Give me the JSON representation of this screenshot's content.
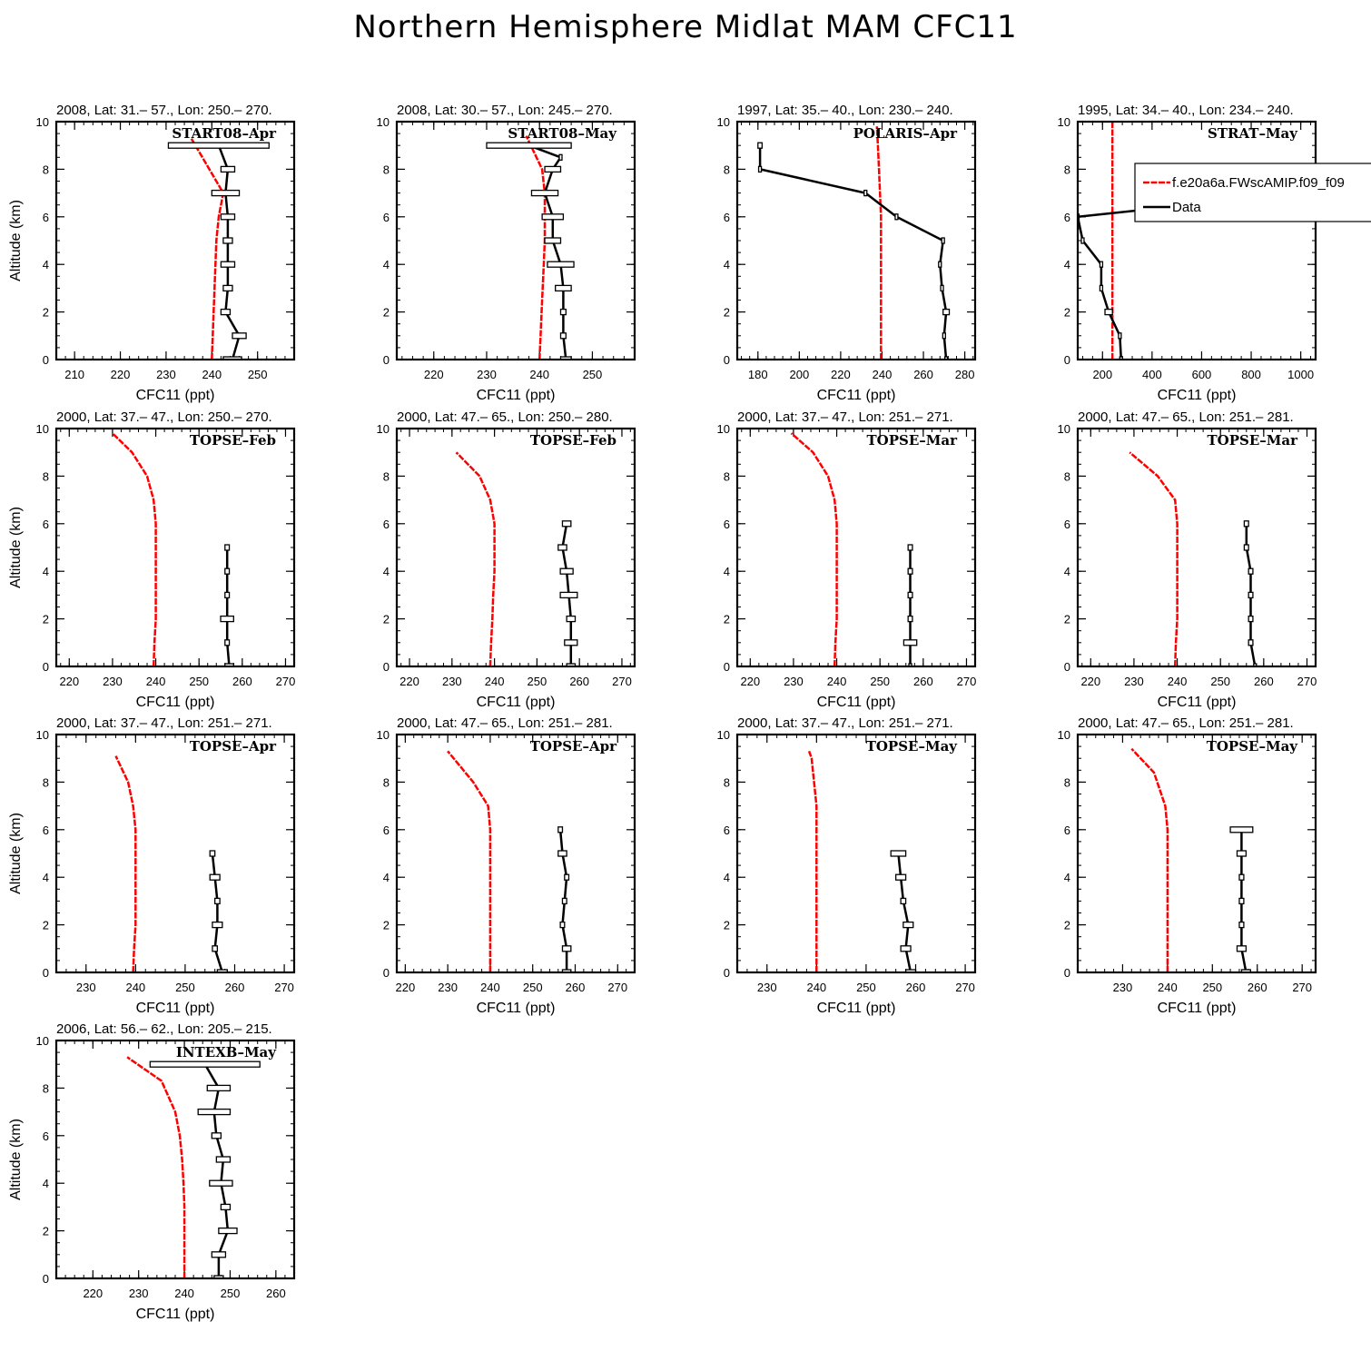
{
  "title": "Northern Hemisphere Midlat MAM CFC11",
  "colors": {
    "model": "#ff0000",
    "data": "#000000"
  },
  "legend": {
    "panel": 3,
    "model_label": "f.e20a6a.FWscAMIP.f09_f09",
    "data_label": "Data"
  },
  "chart_data": [
    {
      "type": "line",
      "title": "2008, Lat:  31.–  57., Lon: 250.–  270.",
      "campaign": "START08–Apr",
      "xlabel": "CFC11 (ppt)",
      "ylabel": "Altitude (km)",
      "xlim": [
        206,
        258
      ],
      "ylim": [
        0,
        10
      ],
      "xticks": [
        210,
        220,
        230,
        240,
        250
      ],
      "yticks": [
        0,
        2,
        4,
        6,
        8,
        10
      ],
      "model": {
        "x": [
          240,
          240.2,
          240.4,
          240.6,
          240.8,
          241,
          241.5,
          242.5,
          235.5
        ],
        "y": [
          0,
          1,
          2,
          3,
          4,
          5,
          6,
          7,
          9.3
        ]
      },
      "observations": {
        "x": [
          244.5,
          246,
          243,
          243.5,
          243.5,
          243.5,
          243.5,
          243,
          243.5,
          241.5
        ],
        "y": [
          0,
          1,
          2,
          3,
          4,
          5,
          6,
          7,
          8,
          9
        ],
        "err": [
          2,
          1.5,
          1,
          1,
          1.5,
          1,
          1.5,
          3,
          1.5,
          11
        ]
      }
    },
    {
      "type": "line",
      "title": "2008, Lat:  30.–  57., Lon: 245.–  270.",
      "campaign": "START08–May",
      "xlabel": "CFC11 (ppt)",
      "ylabel": "",
      "xlim": [
        213,
        258
      ],
      "ylim": [
        0,
        10
      ],
      "xticks": [
        220,
        230,
        240,
        250
      ],
      "yticks": [
        0,
        2,
        4,
        6,
        8,
        10
      ],
      "model": {
        "x": [
          240,
          240.2,
          240.4,
          240.6,
          240.8,
          241,
          241,
          241,
          240.5,
          237.5
        ],
        "y": [
          0,
          1,
          2,
          3,
          4,
          5,
          6,
          7,
          8,
          9.4
        ]
      },
      "observations": {
        "x": [
          245,
          244.5,
          244.5,
          244.5,
          244,
          242.5,
          242.5,
          241,
          242.5,
          244,
          238
        ],
        "y": [
          0,
          1,
          2,
          3,
          4,
          5,
          6,
          7,
          8,
          8.5,
          9
        ],
        "err": [
          1,
          0.5,
          0.5,
          1.5,
          2.5,
          1.5,
          2,
          2.5,
          1.5,
          0,
          8
        ]
      }
    },
    {
      "type": "line",
      "title": "1997, Lat:  35.–  40., Lon: 230.–  240.",
      "campaign": "POLARIS–Apr",
      "xlabel": "CFC11 (ppt)",
      "ylabel": "",
      "xlim": [
        170,
        285
      ],
      "ylim": [
        0,
        10
      ],
      "xticks": [
        180,
        200,
        220,
        240,
        260,
        280
      ],
      "yticks": [
        0,
        2,
        4,
        6,
        8,
        10
      ],
      "model": {
        "x": [
          239.5,
          239.5,
          239.5,
          239.5,
          239.5,
          239.5,
          239.5,
          239,
          238.5,
          238,
          237.5
        ],
        "y": [
          0,
          1,
          2,
          3,
          4,
          5,
          6,
          7,
          8,
          9,
          9.8
        ]
      },
      "observations": {
        "x": [
          271,
          270,
          271,
          269,
          268,
          269.5,
          247,
          232,
          181,
          181
        ],
        "y": [
          0,
          1,
          2,
          3,
          4,
          5,
          6,
          7,
          8,
          9
        ],
        "err": [
          0,
          0,
          1.5,
          0,
          0,
          0,
          0,
          0,
          0,
          1
        ]
      }
    },
    {
      "type": "line",
      "title": "1995, Lat:  34.–  40., Lon: 234.–  240.",
      "campaign": "STRAT–May",
      "xlabel": "CFC11 (ppt)",
      "ylabel": "",
      "xlim": [
        100,
        1060
      ],
      "ylim": [
        0,
        10
      ],
      "xticks": [
        200,
        400,
        600,
        800,
        1000
      ],
      "yticks": [
        0,
        2,
        4,
        6,
        8,
        10
      ],
      "model": {
        "x": [
          240,
          240,
          240,
          240,
          240,
          240,
          240,
          240,
          240,
          240,
          240
        ],
        "y": [
          0,
          1,
          2,
          3,
          4,
          5,
          6,
          7,
          8,
          9,
          10
        ]
      },
      "observations": {
        "x": [
          275,
          270,
          225,
          195,
          195,
          120,
          100,
          1000
        ],
        "y": [
          0,
          1,
          2,
          3,
          4,
          5,
          6,
          7
        ],
        "err": [
          0,
          0,
          15,
          0,
          0,
          0,
          0,
          0
        ]
      }
    },
    {
      "type": "line",
      "title": "2000, Lat:  37.–  47., Lon: 250.–  270.",
      "campaign": "TOPSE–Feb",
      "xlabel": "CFC11 (ppt)",
      "ylabel": "Altitude (km)",
      "xlim": [
        217,
        272
      ],
      "ylim": [
        0,
        10
      ],
      "xticks": [
        220,
        230,
        240,
        250,
        260,
        270
      ],
      "yticks": [
        0,
        2,
        4,
        6,
        8,
        10
      ],
      "model": {
        "x": [
          239.5,
          239.7,
          240,
          240,
          240,
          240,
          240,
          239.5,
          238,
          234.5,
          230
        ],
        "y": [
          0,
          1,
          2,
          3,
          4,
          5,
          6,
          7,
          8,
          9,
          9.8
        ]
      },
      "observations": {
        "x": [
          257,
          256.5,
          256.5,
          256.5,
          256.5,
          256.5
        ],
        "y": [
          0,
          1,
          2,
          3,
          4,
          5
        ],
        "err": [
          1,
          0.5,
          1.5,
          0.5,
          0.5,
          0.5
        ]
      }
    },
    {
      "type": "line",
      "title": "2000, Lat:  47.–  65., Lon: 250.–  280.",
      "campaign": "TOPSE–Feb",
      "xlabel": "CFC11 (ppt)",
      "ylabel": "",
      "xlim": [
        217,
        273
      ],
      "ylim": [
        0,
        10
      ],
      "xticks": [
        220,
        230,
        240,
        250,
        260,
        270
      ],
      "yticks": [
        0,
        2,
        4,
        6,
        8,
        10
      ],
      "model": {
        "x": [
          239,
          239.2,
          239.5,
          239.7,
          240,
          240,
          240,
          239,
          236.5,
          231
        ],
        "y": [
          0,
          1,
          2,
          3,
          4,
          5,
          6,
          7,
          8,
          9
        ]
      },
      "observations": {
        "x": [
          258,
          258,
          258,
          257.5,
          257,
          256,
          257
        ],
        "y": [
          0,
          1,
          2,
          3,
          4,
          5,
          6
        ],
        "err": [
          1,
          1.5,
          1,
          2,
          1.5,
          1,
          1
        ]
      }
    },
    {
      "type": "line",
      "title": "2000, Lat:  37.–  47., Lon: 251.–  271.",
      "campaign": "TOPSE–Mar",
      "xlabel": "CFC11 (ppt)",
      "ylabel": "",
      "xlim": [
        217,
        272
      ],
      "ylim": [
        0,
        10
      ],
      "xticks": [
        220,
        230,
        240,
        250,
        260,
        270
      ],
      "yticks": [
        0,
        2,
        4,
        6,
        8,
        10
      ],
      "model": {
        "x": [
          239.5,
          239.7,
          240,
          240,
          240,
          240,
          240,
          239.5,
          238,
          234.5,
          229.5
        ],
        "y": [
          0,
          1,
          2,
          3,
          4,
          5,
          6,
          7,
          8,
          9,
          9.8
        ]
      },
      "observations": {
        "x": [
          257,
          257,
          257,
          257,
          257,
          257
        ],
        "y": [
          0,
          1,
          2,
          3,
          4,
          5
        ],
        "err": [
          0,
          1.5,
          0.5,
          0.5,
          0.5,
          0.5
        ]
      }
    },
    {
      "type": "line",
      "title": "2000, Lat:  47.–  65., Lon: 251.–  281.",
      "campaign": "TOPSE–Mar",
      "xlabel": "CFC11 (ppt)",
      "ylabel": "",
      "xlim": [
        217,
        272
      ],
      "ylim": [
        0,
        10
      ],
      "xticks": [
        220,
        230,
        240,
        250,
        260,
        270
      ],
      "yticks": [
        0,
        2,
        4,
        6,
        8,
        10
      ],
      "model": {
        "x": [
          239.5,
          239.7,
          240,
          240,
          240,
          240,
          240,
          239.5,
          235.5,
          229
        ],
        "y": [
          0,
          1,
          2,
          3,
          4,
          5,
          6,
          7,
          8,
          9
        ]
      },
      "observations": {
        "x": [
          258,
          257,
          257,
          257,
          257,
          256,
          256
        ],
        "y": [
          0,
          1,
          2,
          3,
          4,
          5,
          6
        ],
        "err": [
          0,
          0.5,
          0.5,
          0.5,
          0.5,
          0.5,
          0.5
        ]
      }
    },
    {
      "type": "line",
      "title": "2000, Lat:  37.–  47., Lon: 251.–  271.",
      "campaign": "TOPSE–Apr",
      "xlabel": "CFC11 (ppt)",
      "ylabel": "Altitude (km)",
      "xlim": [
        224,
        272
      ],
      "ylim": [
        0,
        10
      ],
      "xticks": [
        230,
        240,
        250,
        260,
        270
      ],
      "yticks": [
        0,
        2,
        4,
        6,
        8,
        10
      ],
      "model": {
        "x": [
          239.5,
          239.7,
          240,
          240,
          240,
          240,
          240,
          239.5,
          238.5,
          236
        ],
        "y": [
          0,
          1,
          2,
          3,
          4,
          5,
          6,
          7,
          8,
          9.1
        ]
      },
      "observations": {
        "x": [
          257.5,
          256,
          256.5,
          256.5,
          256,
          255.5
        ],
        "y": [
          0,
          1,
          2,
          3,
          4,
          5
        ],
        "err": [
          1,
          0.5,
          1,
          0.5,
          1,
          0.5
        ]
      }
    },
    {
      "type": "line",
      "title": "2000, Lat:  47.–  65., Lon: 251.–  281.",
      "campaign": "TOPSE–Apr",
      "xlabel": "CFC11 (ppt)",
      "ylabel": "",
      "xlim": [
        218,
        274
      ],
      "ylim": [
        0,
        10
      ],
      "xticks": [
        220,
        230,
        240,
        250,
        260,
        270
      ],
      "yticks": [
        0,
        2,
        4,
        6,
        8,
        10
      ],
      "model": {
        "x": [
          240,
          240,
          240,
          240,
          240,
          240,
          240,
          239.5,
          236,
          230
        ],
        "y": [
          0,
          1,
          2,
          3,
          4,
          5,
          6,
          7,
          8,
          9.3
        ]
      },
      "observations": {
        "x": [
          258,
          258,
          257,
          257.5,
          258,
          257,
          256.5
        ],
        "y": [
          0,
          1,
          2,
          3,
          4,
          5,
          6
        ],
        "err": [
          1,
          1,
          0.5,
          0.5,
          0.5,
          1,
          0.5
        ]
      }
    },
    {
      "type": "line",
      "title": "2000, Lat:  37.–  47., Lon: 251.–  271.",
      "campaign": "TOPSE–May",
      "xlabel": "CFC11 (ppt)",
      "ylabel": "",
      "xlim": [
        224,
        272
      ],
      "ylim": [
        0,
        10
      ],
      "xticks": [
        230,
        240,
        250,
        260,
        270
      ],
      "yticks": [
        0,
        2,
        4,
        6,
        8,
        10
      ],
      "model": {
        "x": [
          240,
          240,
          240,
          240,
          240,
          240,
          240,
          240,
          239.5,
          239,
          238.5
        ],
        "y": [
          0,
          1,
          2,
          3,
          4,
          5,
          6,
          7,
          8,
          9,
          9.3
        ]
      },
      "observations": {
        "x": [
          259,
          258,
          258.5,
          257.5,
          257,
          256.5
        ],
        "y": [
          0,
          1,
          2,
          3,
          4,
          5
        ],
        "err": [
          1,
          1,
          1,
          0.5,
          1,
          1.5
        ]
      }
    },
    {
      "type": "line",
      "title": "2000, Lat:  47.–  65., Lon: 251.–  281.",
      "campaign": "TOPSE–May",
      "xlabel": "CFC11 (ppt)",
      "ylabel": "",
      "xlim": [
        220,
        273
      ],
      "ylim": [
        0,
        10
      ],
      "xticks": [
        230,
        240,
        250,
        260,
        270
      ],
      "yticks": [
        0,
        2,
        4,
        6,
        8,
        10
      ],
      "model": {
        "x": [
          240,
          240,
          240,
          240,
          240,
          240,
          240,
          239.5,
          237,
          232
        ],
        "y": [
          0,
          1,
          2,
          3,
          4,
          5,
          6,
          7,
          8.4,
          9.4
        ]
      },
      "observations": {
        "x": [
          257.5,
          256.5,
          256.5,
          256.5,
          256.5,
          256.5,
          256.5
        ],
        "y": [
          0,
          1,
          2,
          3,
          4,
          5,
          6
        ],
        "err": [
          1,
          1,
          0.5,
          0.5,
          0.5,
          1,
          2.5
        ]
      }
    },
    {
      "type": "line",
      "title": "2006, Lat:  56.–  62., Lon: 205.–  215.",
      "campaign": "INTEXB–May",
      "xlabel": "CFC11 (ppt)",
      "ylabel": "Altitude (km)",
      "xlim": [
        212,
        264
      ],
      "ylim": [
        0,
        10
      ],
      "xticks": [
        220,
        230,
        240,
        250,
        260
      ],
      "yticks": [
        0,
        2,
        4,
        6,
        8,
        10
      ],
      "model": {
        "x": [
          240,
          240,
          240,
          240,
          239.8,
          239.5,
          239,
          238,
          235,
          227.5
        ],
        "y": [
          0,
          1,
          2,
          3,
          4,
          5,
          6,
          7,
          8.3,
          9.3
        ]
      },
      "observations": {
        "x": [
          247.5,
          247.5,
          249.5,
          249,
          248,
          248.5,
          247,
          246.5,
          247.5,
          244.5
        ],
        "y": [
          0,
          1,
          2,
          3,
          4,
          5,
          6,
          7,
          8,
          9
        ],
        "err": [
          1,
          1.5,
          2,
          1,
          2.5,
          1.5,
          1,
          3.5,
          2.5,
          12
        ]
      }
    }
  ]
}
